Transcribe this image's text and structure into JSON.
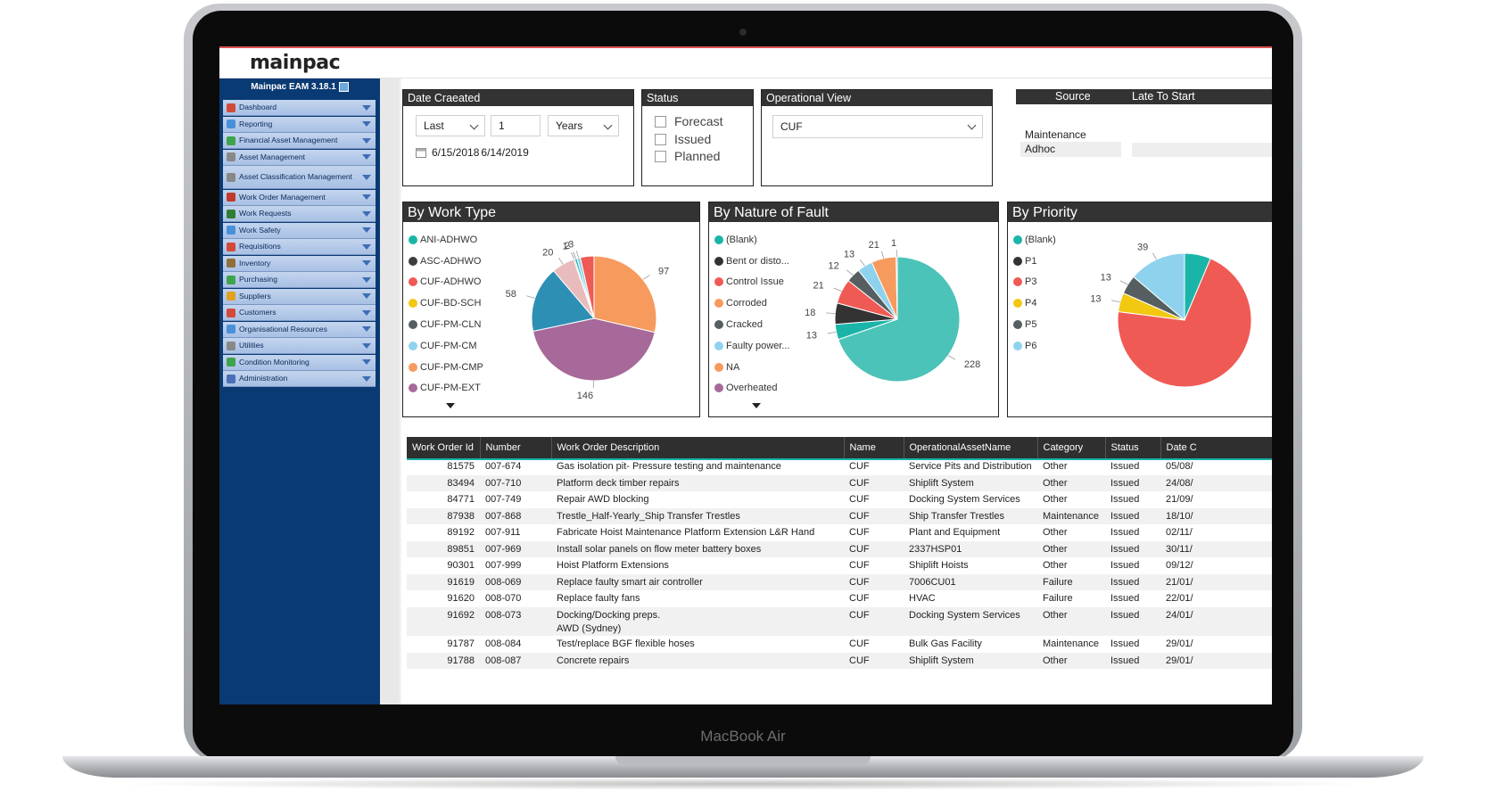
{
  "device": {
    "label": "MacBook Air"
  },
  "app": {
    "logo": "mainpac",
    "version": "Mainpac EAM 3.18.1"
  },
  "sidebar": {
    "items": [
      {
        "label": "Dashboard",
        "icon": "dashboard-icon",
        "color": "#d24a3a"
      },
      {
        "label": "Reporting",
        "icon": "report-icon",
        "color": "#4a90d9"
      },
      {
        "label": "Financial Asset Management",
        "icon": "finance-icon",
        "color": "#3fa34d"
      },
      {
        "label": "Asset Management",
        "icon": "asset-icon",
        "color": "#888888"
      },
      {
        "label": "Asset Classification Management",
        "icon": "classification-icon",
        "color": "#888888"
      },
      {
        "label": "Work Order Management",
        "icon": "wrench-icon",
        "color": "#c0392b"
      },
      {
        "label": "Work Requests",
        "icon": "request-icon",
        "color": "#2e7d32"
      },
      {
        "label": "Work Safety",
        "icon": "safety-icon",
        "color": "#4a90d9"
      },
      {
        "label": "Requisitions",
        "icon": "requisition-icon",
        "color": "#d24a3a"
      },
      {
        "label": "Inventory",
        "icon": "inventory-icon",
        "color": "#8e6e3a"
      },
      {
        "label": "Purchasing",
        "icon": "purchasing-icon",
        "color": "#3fa34d"
      },
      {
        "label": "Suppliers",
        "icon": "supplier-icon",
        "color": "#e0a020"
      },
      {
        "label": "Customers",
        "icon": "customer-icon",
        "color": "#d24a3a"
      },
      {
        "label": "Organisational Resources",
        "icon": "org-icon",
        "color": "#4a90d9"
      },
      {
        "label": "Utilities",
        "icon": "utilities-icon",
        "color": "#888888"
      },
      {
        "label": "Condition Monitoring",
        "icon": "monitor-icon",
        "color": "#3fa34d"
      },
      {
        "label": "Administration",
        "icon": "admin-icon",
        "color": "#4a6fb5"
      }
    ]
  },
  "filters": {
    "date": {
      "title": "Date Craeated",
      "period": "Last",
      "count": "1",
      "unit": "Years",
      "range_from": "6/15/2018",
      "range_to": "6/14/2019"
    },
    "status": {
      "title": "Status",
      "options": [
        "Forecast",
        "Issued",
        "Planned"
      ]
    },
    "operational_view": {
      "title": "Operational View",
      "value": "CUF"
    },
    "source": {
      "title": "Source",
      "title2": "Late To Start",
      "rows": [
        "Maintenance",
        "Adhoc"
      ]
    }
  },
  "charts_meta": {
    "work_type_title": "By Work Type",
    "fault_title": "By Nature of Fault",
    "priority_title": "By Priority"
  },
  "chart_data": [
    {
      "type": "pie",
      "title": "By Work Type",
      "categories": [
        "CUF-PM-CMP",
        "CUF-PM-EXT",
        "CUF-BD-SCH",
        "ASC-ADHWO",
        "CUF-PM-CLN",
        "ANI-ADHWO",
        "CUF-PM-CM",
        "CUF-ADHWO"
      ],
      "legend": [
        "ANI-ADHWO",
        "ASC-ADHWO",
        "CUF-ADHWO",
        "CUF-BD-SCH",
        "CUF-PM-CLN",
        "CUF-PM-CM",
        "CUF-PM-CMP",
        "CUF-PM-EXT"
      ],
      "values": [
        97,
        146,
        58,
        20,
        1,
        2,
        3,
        12
      ],
      "labels": [
        "97",
        "146",
        "58",
        "20",
        "1",
        "2",
        "3",
        ""
      ],
      "colors": [
        "#f79a5e",
        "#a66999",
        "#2e8fb5",
        "#e8bcbc",
        "#4a4a4a",
        "#1ab5a8",
        "#8fd2ee",
        "#f05a55"
      ],
      "legend_colors": [
        "#1ab5a8",
        "#3d3d3d",
        "#f05a55",
        "#f2c811",
        "#555e60",
        "#8fd2ee",
        "#f79a5e",
        "#a66999"
      ],
      "legend_placement": "left"
    },
    {
      "type": "pie",
      "title": "By Nature of Fault",
      "categories": [
        "(Blank)",
        "Bent or disto...",
        "Control Issue",
        "Corroded",
        "Cracked",
        "Faulty power...",
        "NA",
        "Overheated"
      ],
      "legend": [
        "(Blank)",
        "Bent or disto...",
        "Control Issue",
        "Corroded",
        "Cracked",
        "Faulty power...",
        "NA",
        "Overheated"
      ],
      "values": [
        228,
        13,
        18,
        21,
        12,
        13,
        21,
        1
      ],
      "labels": [
        "228",
        "13",
        "18",
        "21",
        "12",
        "13",
        "21",
        "1"
      ],
      "colors": [
        "#4cc3b8",
        "#1ab5a8",
        "#333333",
        "#f05a55",
        "#555e60",
        "#8fd2ee",
        "#f79a5e",
        "#a66999"
      ],
      "legend_colors": [
        "#1ab5a8",
        "#333333",
        "#f05a55",
        "#f79a5e",
        "#555e60",
        "#8fd2ee",
        "#f79a5e",
        "#a66999"
      ],
      "legend_placement": "left"
    },
    {
      "type": "pie",
      "title": "By Priority",
      "categories": [
        "(Blank)",
        "P3",
        "P4",
        "P5",
        "P6"
      ],
      "legend": [
        "(Blank)",
        "P1",
        "P3",
        "P4",
        "P5",
        "P6"
      ],
      "values": [
        18,
        200,
        13,
        13,
        39
      ],
      "labels": [
        "",
        "",
        "13",
        "13",
        "39"
      ],
      "colors": [
        "#1ab5a8",
        "#f05a55",
        "#f2c811",
        "#555e60",
        "#8fd2ee"
      ],
      "legend_colors": [
        "#1ab5a8",
        "#333333",
        "#f05a55",
        "#f2c811",
        "#555e60",
        "#8fd2ee"
      ],
      "legend_placement": "left"
    }
  ],
  "table": {
    "columns": [
      "Work Order Id",
      "Number",
      "Work Order Description",
      "Name",
      "OperationalAssetName",
      "Category",
      "Status",
      "Date C"
    ],
    "rows": [
      [
        "81575",
        "007-674",
        "Gas isolation pit- Pressure testing and maintenance",
        "CUF",
        "Service Pits and Distribution",
        "Other",
        "Issued",
        "05/08/"
      ],
      [
        "83494",
        "007-710",
        "Platform deck timber repairs",
        "CUF",
        "Shiplift System",
        "Other",
        "Issued",
        "24/08/"
      ],
      [
        "84771",
        "007-749",
        "Repair AWD blocking",
        "CUF",
        "Docking System Services",
        "Other",
        "Issued",
        "21/09/"
      ],
      [
        "87938",
        "007-868",
        "Trestle_Half-Yearly_Ship Transfer Trestles",
        "CUF",
        "Ship Transfer Trestles",
        "Maintenance",
        "Issued",
        "18/10/"
      ],
      [
        "89192",
        "007-911",
        "Fabricate Hoist Maintenance Platform Extension L&R Hand",
        "CUF",
        "Plant and Equipment",
        "Other",
        "Issued",
        "02/11/"
      ],
      [
        "89851",
        "007-969",
        "Install solar panels on flow meter battery boxes",
        "CUF",
        "2337HSP01",
        "Other",
        "Issued",
        "30/11/"
      ],
      [
        "90301",
        "007-999",
        "Hoist Platform Extensions",
        "CUF",
        "Shiplift Hoists",
        "Other",
        "Issued",
        "09/12/"
      ],
      [
        "91619",
        "008-069",
        "Replace faulty smart air controller",
        "CUF",
        "7006CU01",
        "Failure",
        "Issued",
        "21/01/"
      ],
      [
        "91620",
        "008-070",
        "Replace faulty fans",
        "CUF",
        "HVAC",
        "Failure",
        "Issued",
        "22/01/"
      ],
      [
        "91692",
        "008-073",
        "Docking/Docking preps.",
        "CUF",
        "Docking System Services",
        "Other",
        "Issued",
        "24/01/"
      ],
      [
        "",
        "",
        "AWD (Sydney)",
        "",
        "",
        "",
        "",
        ""
      ],
      [
        "91787",
        "008-084",
        "Test/replace BGF flexible hoses",
        "CUF",
        "Bulk Gas Facility",
        "Maintenance",
        "Issued",
        "29/01/"
      ],
      [
        "91788",
        "008-087",
        "Concrete repairs",
        "CUF",
        "Shiplift System",
        "Other",
        "Issued",
        "29/01/"
      ]
    ]
  }
}
